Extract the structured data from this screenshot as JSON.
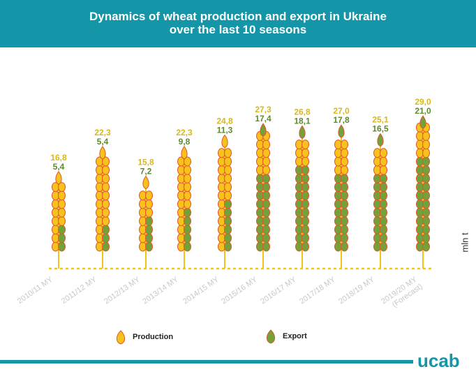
{
  "header": {
    "title_line1": "Dynamics of wheat production and export in Ukraine",
    "title_line2": "over the last 10 seasons"
  },
  "unit_label": "mln t",
  "logo": "ucab",
  "legend": {
    "production": "Production",
    "export": "Export"
  },
  "colors": {
    "header": "#1595a8",
    "production": "#f7c21c",
    "production_label": "#d9b81a",
    "export": "#74a23a",
    "export_label": "#5e8a2c",
    "outline": "#e2552a",
    "stem": "#f2c318"
  },
  "chart_data": {
    "type": "bar",
    "categories": [
      "2010/11 MY",
      "2011/12 MY",
      "2012/13 MY",
      "2013/14 MY",
      "2014/15 MY",
      "2015/16 MY",
      "2016/17 MY",
      "2017/18 MY",
      "2018/19 MY",
      "2019/20 MY"
    ],
    "category_notes": [
      "",
      "",
      "",
      "",
      "",
      "",
      "",
      "",
      "",
      "(Forecast)"
    ],
    "series": [
      {
        "name": "Production",
        "values": [
          16.8,
          22.3,
          15.8,
          22.3,
          24.8,
          27.3,
          26.8,
          27.0,
          25.1,
          29.0
        ],
        "labels": [
          "16,8",
          "22,3",
          "15,8",
          "22,3",
          "24,8",
          "27,3",
          "26,8",
          "27,0",
          "25,1",
          "29,0"
        ]
      },
      {
        "name": "Export",
        "values": [
          5.4,
          5.4,
          7.2,
          9.8,
          11.3,
          17.4,
          18.1,
          17.8,
          16.5,
          21.0
        ],
        "labels": [
          "5,4",
          "5,4",
          "7,2",
          "9,8",
          "11,3",
          "17,4",
          "18,1",
          "17,8",
          "16,5",
          "21,0"
        ]
      }
    ],
    "title": "Dynamics of wheat production and export in Ukraine over the last 10 seasons",
    "ylabel": "mln t",
    "ylim": [
      0,
      30
    ],
    "grid": false,
    "legend_position": "bottom"
  }
}
